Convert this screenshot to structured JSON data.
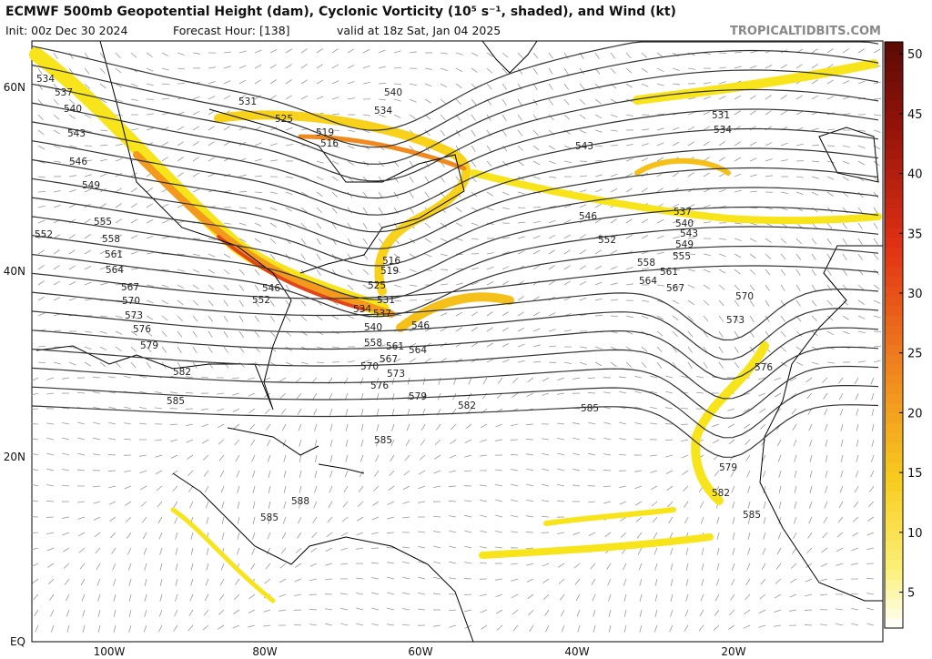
{
  "header": {
    "title": "ECMWF 500mb Geopotential Height (dam), Cyclonic Vorticity (10⁵ s⁻¹, shaded), and Wind (kt)",
    "init": "Init: 00z Dec 30 2024",
    "forecast_hour": "Forecast Hour: [138]",
    "valid": "valid at 18z Sat, Jan 04 2025",
    "source": "TROPICALTIDBITS.COM"
  },
  "map": {
    "lat_labels": [
      "60N",
      "40N",
      "20N",
      "EQ"
    ],
    "lon_labels": [
      "100W",
      "80W",
      "60W",
      "40W",
      "20W"
    ],
    "contour_labels": [
      "534",
      "537",
      "540",
      "543",
      "546",
      "549",
      "552",
      "555",
      "558",
      "561",
      "564",
      "567",
      "570",
      "573",
      "576",
      "579",
      "582",
      "585",
      "531",
      "525",
      "519",
      "516",
      "540",
      "534",
      "543",
      "531",
      "534",
      "537",
      "540",
      "543",
      "549",
      "555",
      "558",
      "561",
      "564",
      "567",
      "570",
      "573",
      "576",
      "546",
      "552",
      "585",
      "588",
      "585",
      "582",
      "579",
      "585",
      "579",
      "582",
      "585",
      "516",
      "519",
      "525",
      "531",
      "534",
      "537",
      "540",
      "546",
      "558",
      "561",
      "564",
      "567",
      "570",
      "573",
      "576",
      "552",
      "546"
    ]
  },
  "colorbar": {
    "range": [
      2,
      51
    ],
    "ticks": [
      5,
      10,
      15,
      20,
      25,
      30,
      35,
      40,
      45,
      50
    ]
  }
}
